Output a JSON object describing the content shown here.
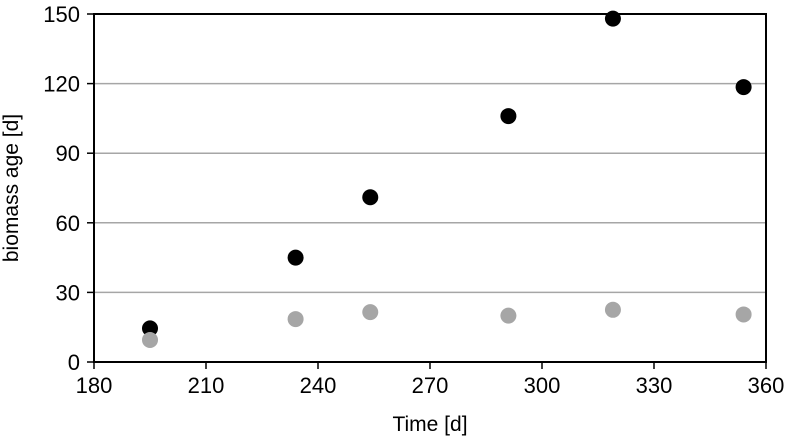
{
  "chart_data": {
    "type": "scatter",
    "title": "",
    "xlabel": "Time [d]",
    "ylabel": "biomass age [d]",
    "xlim": [
      180,
      360
    ],
    "ylim": [
      0,
      150
    ],
    "xticks": [
      180,
      210,
      240,
      270,
      300,
      330,
      360
    ],
    "yticks": [
      0,
      30,
      60,
      90,
      120,
      150
    ],
    "grid": "horizontal",
    "legend": "none",
    "series": [
      {
        "color": "#000000",
        "points": [
          {
            "x": 195,
            "y": 14.5
          },
          {
            "x": 234,
            "y": 45
          },
          {
            "x": 254,
            "y": 71
          },
          {
            "x": 291,
            "y": 106
          },
          {
            "x": 319,
            "y": 148
          },
          {
            "x": 354,
            "y": 118.5
          }
        ]
      },
      {
        "color": "#a6a6a6",
        "points": [
          {
            "x": 195,
            "y": 9.5
          },
          {
            "x": 234,
            "y": 18.5
          },
          {
            "x": 254,
            "y": 21.5
          },
          {
            "x": 291,
            "y": 20
          },
          {
            "x": 319,
            "y": 22.5
          },
          {
            "x": 354,
            "y": 20.5
          }
        ]
      }
    ]
  }
}
